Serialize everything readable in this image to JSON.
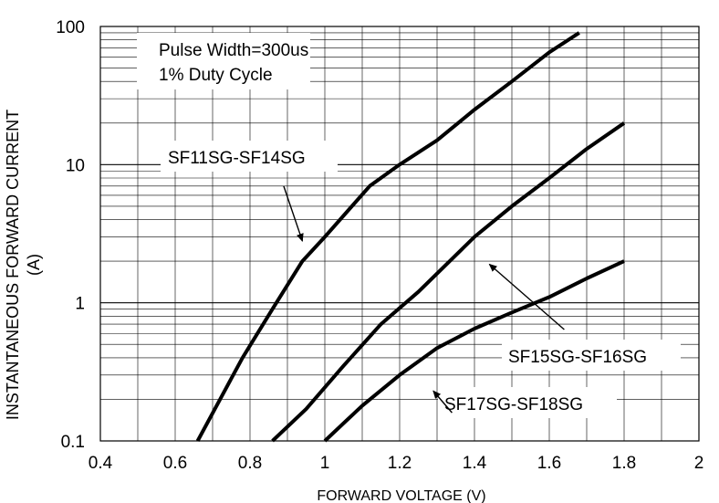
{
  "chart_data": {
    "type": "line",
    "title": "",
    "xlabel": "FORWARD VOLTAGE (V)",
    "ylabel_line1": "INSTANTANEOUS FORWARD CURRENT",
    "ylabel_line2": "(A)",
    "xlim": [
      0.4,
      2.0
    ],
    "ylim": [
      0.1,
      100
    ],
    "yscale": "log",
    "x_ticks": [
      "0.4",
      "0.6",
      "0.8",
      "1",
      "1.2",
      "1.4",
      "1.6",
      "1.8",
      "2"
    ],
    "x_tick_values": [
      0.4,
      0.6,
      0.8,
      1.0,
      1.2,
      1.4,
      1.6,
      1.8,
      2.0
    ],
    "y_ticks": [
      "0.1",
      "1",
      "10",
      "100"
    ],
    "y_tick_values": [
      0.1,
      1,
      10,
      100
    ],
    "grid": "on",
    "note_lines": [
      "Pulse Width=300us",
      "1% Duty Cycle"
    ],
    "series": [
      {
        "name": "SF11SG-SF14SG",
        "x": [
          0.66,
          0.72,
          0.78,
          0.86,
          0.94,
          1.0,
          1.12,
          1.2,
          1.3,
          1.4,
          1.5,
          1.6,
          1.68
        ],
        "y": [
          0.1,
          0.2,
          0.4,
          0.9,
          2.0,
          3.0,
          7.0,
          10.0,
          15.0,
          25.0,
          40.0,
          65.0,
          90.0
        ]
      },
      {
        "name": "SF15SG-SF16SG",
        "x": [
          0.86,
          0.95,
          1.05,
          1.15,
          1.25,
          1.4,
          1.5,
          1.6,
          1.7,
          1.8
        ],
        "y": [
          0.1,
          0.17,
          0.35,
          0.7,
          1.2,
          3.0,
          5.0,
          8.0,
          13.0,
          20.0
        ]
      },
      {
        "name": "SF17SG-SF18SG",
        "x": [
          1.0,
          1.1,
          1.2,
          1.3,
          1.4,
          1.5,
          1.6,
          1.7,
          1.8
        ],
        "y": [
          0.1,
          0.18,
          0.3,
          0.47,
          0.65,
          0.85,
          1.1,
          1.5,
          2.0
        ]
      }
    ],
    "annotations": [
      {
        "label": "SF11SG-SF14SG",
        "arrow_from": [
          0.89,
          7.0
        ],
        "arrow_to": [
          0.94,
          2.8
        ]
      },
      {
        "label": "SF15SG-SF16SG",
        "arrow_from": [
          1.64,
          0.64
        ],
        "arrow_to": [
          1.44,
          1.9
        ]
      },
      {
        "label": "SF17SG-SF18SG",
        "arrow_from": [
          1.34,
          0.16
        ],
        "arrow_to": [
          1.29,
          0.23
        ]
      }
    ]
  }
}
